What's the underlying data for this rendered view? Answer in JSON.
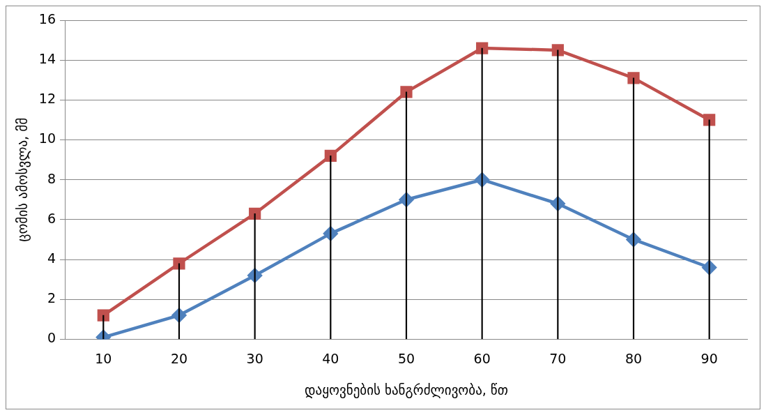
{
  "chart_data": {
    "type": "line",
    "xlabel": "დაყოვნების ხანგრძლივობა, წთ",
    "ylabel": "ცომის ამოსვლა, მმ",
    "categories": [
      "10",
      "20",
      "30",
      "40",
      "50",
      "60",
      "70",
      "80",
      "90"
    ],
    "ylim": [
      0,
      16
    ],
    "yticks": [
      0,
      2,
      4,
      6,
      8,
      10,
      12,
      14,
      16
    ],
    "grid": "y",
    "legend": false,
    "line_style": "solid",
    "series": [
      {
        "type": "bar",
        "color": "#000000",
        "values": [
          1.2,
          3.8,
          6.3,
          9.2,
          12.4,
          14.6,
          14.5,
          13.1,
          11.0
        ]
      },
      {
        "color": "#4f81bd",
        "marker": "diamond",
        "values": [
          0.1,
          1.2,
          3.2,
          5.3,
          7.0,
          8.0,
          6.8,
          5.0,
          3.6
        ]
      },
      {
        "color": "#c0504d",
        "marker": "square",
        "values": [
          1.2,
          3.8,
          6.3,
          9.2,
          12.4,
          14.6,
          14.5,
          13.1,
          11.0
        ]
      }
    ]
  }
}
